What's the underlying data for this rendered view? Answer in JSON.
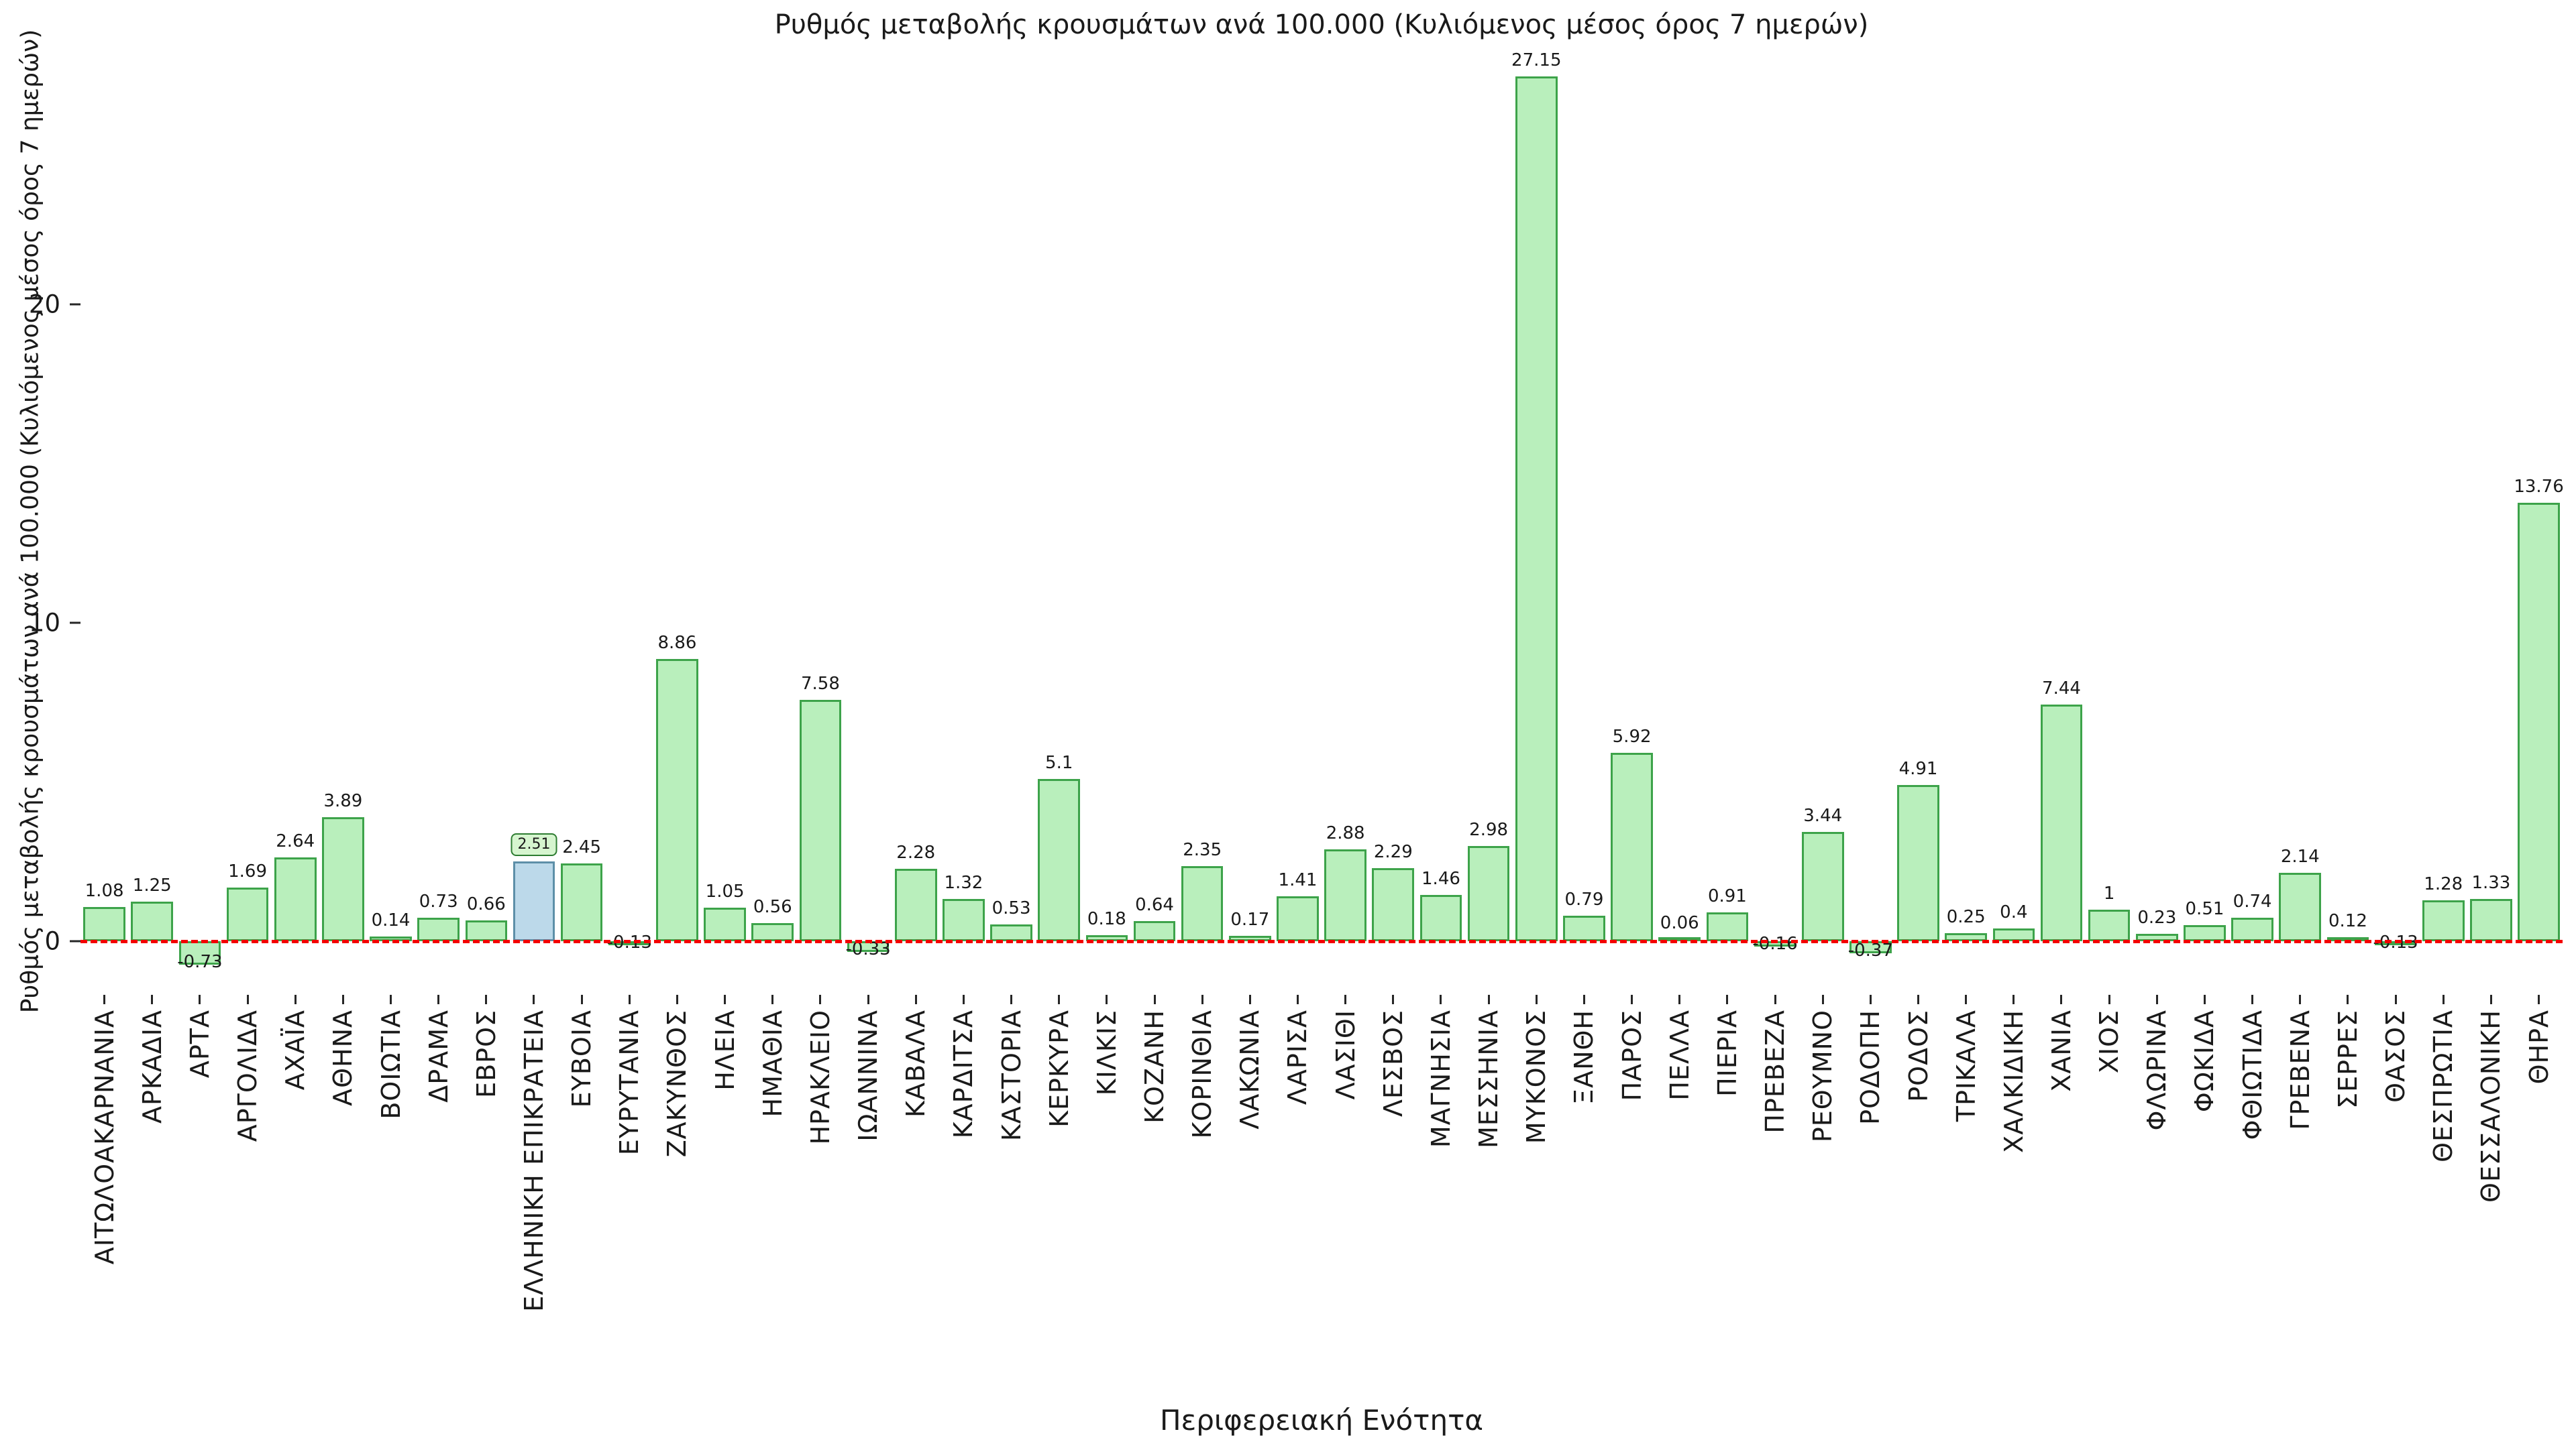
{
  "chart_data": {
    "type": "bar",
    "title": "Ρυθμός μεταβολής κρουσμάτων ανά 100.000 (Κυλιόμενος μέσος όρος 7 ημερών)",
    "xlabel": "Περιφερειακή Ενότητα",
    "ylabel": "Ρυθμός μεταβολής κρουσμάτων ανά 100.000 (Κυλιόμενος μέσος όρος 7 ημερών)",
    "ylim": [
      -1.5,
      28.5
    ],
    "yticks": [
      0,
      10,
      20
    ],
    "ytick_labels": [
      "0",
      "10",
      "20"
    ],
    "grid": false,
    "legend": "none",
    "zero_line": {
      "value": 0,
      "color": "#ff0000",
      "style": "dashed"
    },
    "colors": {
      "bar_fill": "#b9efbc",
      "bar_stroke": "#3da34a",
      "highlight_fill": "#bcd9ea",
      "highlight_stroke": "#5d8fa8",
      "label_box_fill": "#d6f5cf",
      "label_box_stroke": "#2e7d32",
      "text": "#1a1a1a"
    },
    "highlight_category": "ΕΛΛΗΝΙΚΗ ΕΠΙΚΡΑΤΕΙΑ",
    "categories": [
      "ΑΙΤΩΛΟΑΚΑΡΝΑΝΙΑ",
      "ΑΡΚΑΔΙΑ",
      "ΑΡΤΑ",
      "ΑΡΓΟΛΙΔΑ",
      "ΑΧΑΪΑ",
      "ΑΘΗΝΑ",
      "ΒΟΙΩΤΙΑ",
      "ΔΡΑΜΑ",
      "ΕΒΡΟΣ",
      "ΕΛΛΗΝΙΚΗ ΕΠΙΚΡΑΤΕΙΑ",
      "ΕΥΒΟΙΑ",
      "ΕΥΡΥΤΑΝΙΑ",
      "ΖΑΚΥΝΘΟΣ",
      "ΗΛΕΙΑ",
      "ΗΜΑΘΙΑ",
      "ΗΡΑΚΛΕΙΟ",
      "ΙΩΑΝΝΙΝΑ",
      "ΚΑΒΑΛΑ",
      "ΚΑΡΔΙΤΣΑ",
      "ΚΑΣΤΟΡΙΑ",
      "ΚΕΡΚΥΡΑ",
      "ΚΙΛΚΙΣ",
      "ΚΟΖΑΝΗ",
      "ΚΟΡΙΝΘΙΑ",
      "ΛΑΚΩΝΙΑ",
      "ΛΑΡΙΣΑ",
      "ΛΑΣΙΘΙ",
      "ΛΕΣΒΟΣ",
      "ΜΑΓΝΗΣΙΑ",
      "ΜΕΣΣΗΝΙΑ",
      "ΜΥΚΟΝΟΣ",
      "ΞΑΝΘΗ",
      "ΠΑΡΟΣ",
      "ΠΕΛΛΑ",
      "ΠΙΕΡΙΑ",
      "ΠΡΕΒΕΖΑ",
      "ΡΕΘΥΜΝΟ",
      "ΡΟΔΟΠΗ",
      "ΡΟΔΟΣ",
      "ΤΡΙΚΑΛΑ",
      "ΧΑΛΚΙΔΙΚΗ",
      "ΧΑΝΙΑ",
      "ΧΙΟΣ",
      "ΦΛΩΡΙΝΑ",
      "ΦΩΚΙΔΑ",
      "ΦΘΙΩΤΙΔΑ",
      "ΓΡΕΒΕΝΑ",
      "ΣΕΡΡΕΣ",
      "ΘΑΣΟΣ",
      "ΘΕΣΠΡΩΤΙΑ",
      "ΘΕΣΣΑΛΟΝΙΚΗ",
      "ΘΗΡΑ"
    ],
    "values": [
      1.08,
      1.25,
      -0.73,
      1.69,
      2.64,
      3.89,
      0.14,
      0.73,
      0.66,
      2.51,
      2.45,
      -0.13,
      8.86,
      1.05,
      0.56,
      7.58,
      -0.33,
      2.28,
      1.32,
      0.53,
      5.1,
      0.18,
      0.64,
      2.35,
      0.17,
      1.41,
      2.88,
      2.29,
      1.46,
      2.98,
      27.15,
      0.79,
      5.92,
      0.06,
      0.91,
      -0.16,
      3.44,
      -0.37,
      4.91,
      0.25,
      0.4,
      7.44,
      1,
      0.23,
      0.51,
      0.74,
      2.14,
      0.12,
      -0.13,
      1.28,
      1.33,
      13.76
    ],
    "value_labels": [
      "1.08",
      "1.25",
      "-0.73",
      "1.69",
      "2.64",
      "3.89",
      "0.14",
      "0.73",
      "0.66",
      "2.51",
      "2.45",
      "-0.13",
      "8.86",
      "1.05",
      "0.56",
      "7.58",
      "-0.33",
      "2.28",
      "1.32",
      "0.53",
      "5.1",
      "0.18",
      "0.64",
      "2.35",
      "0.17",
      "1.41",
      "2.88",
      "2.29",
      "1.46",
      "2.98",
      "27.15",
      "0.79",
      "5.92",
      "0.06",
      "0.91",
      "-0.16",
      "3.44",
      "-0.37",
      "4.91",
      "0.25",
      "0.4",
      "7.44",
      "1",
      "0.23",
      "0.51",
      "0.74",
      "2.14",
      "0.12",
      "-0.13",
      "1.28",
      "1.33",
      "13.76"
    ]
  }
}
